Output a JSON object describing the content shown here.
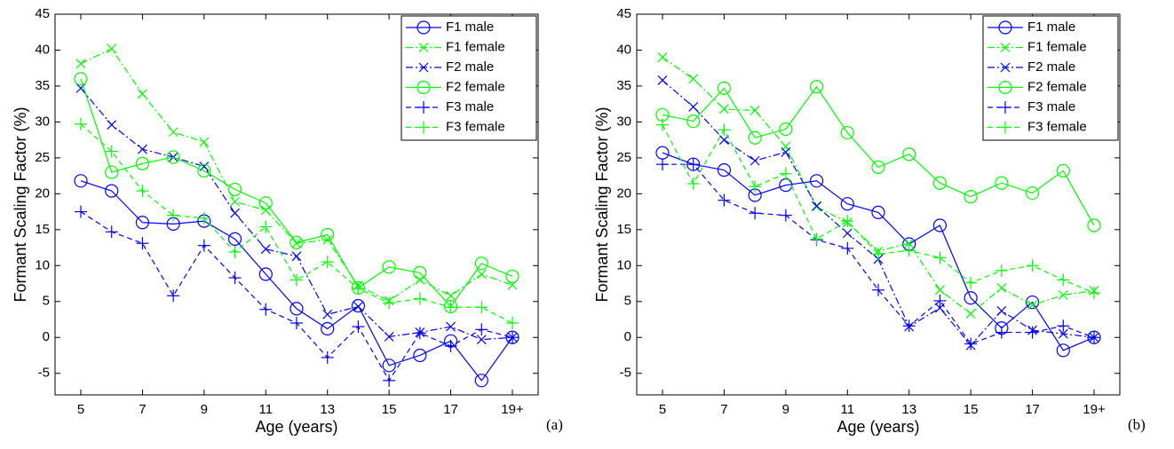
{
  "chart_data": [
    {
      "type": "line",
      "label": "(a)",
      "xlabel": "Age (years)",
      "ylabel": "Formant Scaling Factor (%)",
      "categories": [
        "5",
        null,
        "7",
        null,
        "9",
        null,
        "11",
        null,
        "13",
        null,
        "15",
        null,
        "17",
        null,
        "19+"
      ],
      "ylim": [
        -8,
        45
      ],
      "yticks": [
        -5,
        0,
        5,
        10,
        15,
        20,
        25,
        30,
        35,
        40,
        45
      ],
      "legend": "upper right",
      "series": [
        {
          "name": "F1 male",
          "color": "#0000ff",
          "marker": "o",
          "linestyle": "solid",
          "values": [
            21.8,
            20.4,
            16.0,
            15.8,
            16.2,
            13.7,
            8.8,
            4.0,
            1.2,
            4.4,
            -3.9,
            -2.5,
            -0.5,
            -6.0,
            0
          ]
        },
        {
          "name": "F1 female",
          "color": "#00ff00",
          "marker": "x",
          "linestyle": "dashdot",
          "values": [
            38.1,
            40.2,
            33.9,
            28.6,
            27.2,
            18.9,
            17.7,
            13.1,
            13.6,
            7.2,
            5.1,
            8.0,
            5.8,
            8.8,
            7.3
          ]
        },
        {
          "name": "F2 male",
          "color": "#0000ff",
          "marker": "x",
          "linestyle": "dashdot",
          "values": [
            34.7,
            29.6,
            26.2,
            25.1,
            23.8,
            17.3,
            12.3,
            11.3,
            3.2,
            4.3,
            0.1,
            0.7,
            1.5,
            -0.3,
            0
          ]
        },
        {
          "name": "F2 female",
          "color": "#00ff00",
          "marker": "o",
          "linestyle": "solid",
          "values": [
            36.0,
            23.0,
            24.2,
            25.1,
            23.2,
            20.6,
            18.7,
            13.2,
            14.3,
            6.9,
            9.8,
            9.0,
            4.3,
            10.3,
            8.5
          ]
        },
        {
          "name": "F3 male",
          "color": "#0000ff",
          "marker": "+",
          "linestyle": "dashed",
          "values": [
            17.5,
            14.7,
            13.1,
            5.8,
            12.8,
            8.3,
            3.9,
            2.0,
            -2.8,
            1.5,
            -6.0,
            0.6,
            -1.2,
            1.1,
            0
          ]
        },
        {
          "name": "F3 female",
          "color": "#00ff00",
          "marker": "+",
          "linestyle": "dashed",
          "values": [
            29.7,
            25.9,
            20.4,
            17.0,
            16.6,
            11.9,
            15.4,
            8.0,
            10.5,
            6.8,
            4.8,
            5.4,
            4.2,
            4.2,
            2.0
          ]
        }
      ]
    },
    {
      "type": "line",
      "label": "(b)",
      "xlabel": "Age (years)",
      "ylabel": "Formant Scaling Factor (%)",
      "categories": [
        "5",
        null,
        "7",
        null,
        "9",
        null,
        "11",
        null,
        "13",
        null,
        "15",
        null,
        "17",
        null,
        "19+"
      ],
      "ylim": [
        -8,
        45
      ],
      "yticks": [
        -5,
        0,
        5,
        10,
        15,
        20,
        25,
        30,
        35,
        40,
        45
      ],
      "legend": "upper right",
      "series": [
        {
          "name": "F1 male",
          "color": "#0000ff",
          "marker": "o",
          "linestyle": "solid",
          "values": [
            25.7,
            24.1,
            23.3,
            19.8,
            21.2,
            21.8,
            18.6,
            17.4,
            13.0,
            15.6,
            5.5,
            1.3,
            4.9,
            -1.8,
            0
          ]
        },
        {
          "name": "F1 female",
          "color": "#00ff00",
          "marker": "x",
          "linestyle": "dashdot",
          "values": [
            39.0,
            36.0,
            31.8,
            31.6,
            26.6,
            18.2,
            16.0,
            12.0,
            13.1,
            6.6,
            3.3,
            6.9,
            4.5,
            5.9,
            6.5
          ]
        },
        {
          "name": "F2 male",
          "color": "#0000ff",
          "marker": "x",
          "linestyle": "dashdot",
          "values": [
            35.8,
            32.1,
            27.5,
            24.6,
            25.8,
            18.3,
            14.5,
            10.9,
            1.5,
            4.1,
            -1.1,
            3.7,
            1.0,
            0.5,
            0
          ]
        },
        {
          "name": "F2 female",
          "color": "#00ff00",
          "marker": "o",
          "linestyle": "solid",
          "values": [
            31.0,
            30.1,
            34.7,
            27.8,
            29.0,
            34.9,
            28.5,
            23.7,
            25.5,
            21.5,
            19.6,
            21.5,
            20.1,
            23.2,
            15.6
          ]
        },
        {
          "name": "F3 male",
          "color": "#0000ff",
          "marker": "+",
          "linestyle": "dashed",
          "values": [
            24.1,
            24.1,
            19.1,
            17.3,
            17.0,
            13.6,
            12.4,
            6.6,
            1.6,
            5.1,
            -0.9,
            0.7,
            0.7,
            1.6,
            0
          ]
        },
        {
          "name": "F3 female",
          "color": "#00ff00",
          "marker": "+",
          "linestyle": "dashed",
          "values": [
            29.6,
            21.4,
            28.9,
            21.0,
            22.8,
            13.7,
            16.2,
            11.6,
            12.1,
            11.1,
            7.6,
            9.3,
            10.0,
            8.0,
            6.2
          ]
        }
      ]
    }
  ]
}
